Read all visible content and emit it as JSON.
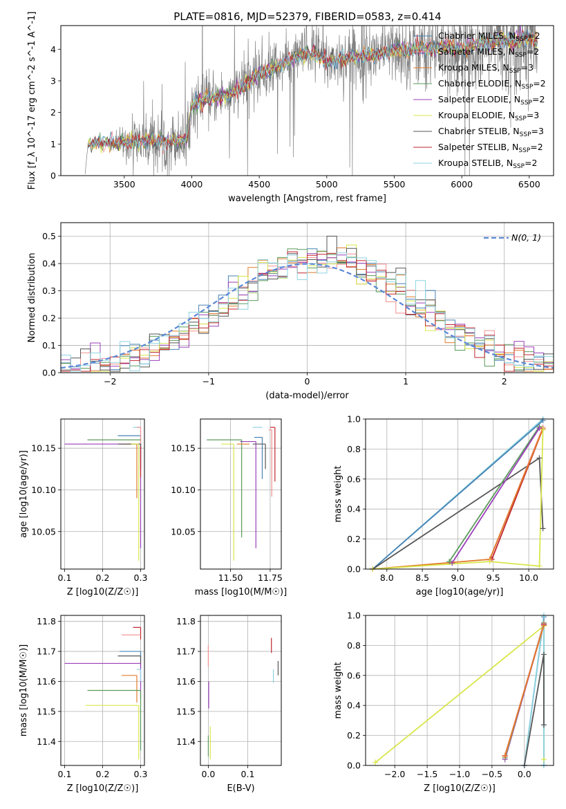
{
  "figure_title": "PLATE=0816, MJD=52379, FIBERID=0583, z=0.414",
  "model_colors": {
    "Chabrier MILES": "#4682b4",
    "Salpeter MILES": "#f28e8e",
    "Kroupa MILES": "#e07b2a",
    "Chabrier ELODIE": "#5a9a5a",
    "Salpeter ELODIE": "#9a3fb8",
    "Kroupa ELODIE": "#d8e64a",
    "Chabrier STELIB": "#555555",
    "Salpeter STELIB": "#c0262d",
    "Kroupa STELIB": "#8dd3e0"
  },
  "chart_data": [
    {
      "type": "line",
      "id": "spectrum",
      "xlabel": "wavelength [Angstrom, rest frame]",
      "ylabel": "Flux [f_λ 10^-17 erg cm^-2 s^-1 A^-1]",
      "xlim": [
        3030,
        6680
      ],
      "ylim": [
        0,
        4.75
      ],
      "xticks": [
        3500,
        4000,
        4500,
        5000,
        5500,
        6000,
        6500
      ],
      "yticks": [
        0,
        1,
        2,
        3,
        4
      ],
      "grid": false,
      "legend_position": "top-right",
      "legend": [
        {
          "name": "Chabrier MILES",
          "nssp": "2"
        },
        {
          "name": "Salpeter MILES",
          "nssp": "2"
        },
        {
          "name": "Kroupa MILES",
          "nssp": "3"
        },
        {
          "name": "Chabrier ELODIE",
          "nssp": "2"
        },
        {
          "name": "Salpeter ELODIE",
          "nssp": "2"
        },
        {
          "name": "Kroupa ELODIE",
          "nssp": "3"
        },
        {
          "name": "Chabrier STELIB",
          "nssp": "3"
        },
        {
          "name": "Salpeter STELIB",
          "nssp": "2"
        },
        {
          "name": "Kroupa STELIB",
          "nssp": "2"
        }
      ],
      "data_color": "#7f7f7f",
      "continuum": {
        "x": [
          3210,
          3230,
          3300,
          3400,
          3500,
          3600,
          3700,
          3800,
          3900,
          3960,
          4000,
          4100,
          4200,
          4300,
          4400,
          4500,
          4600,
          4700,
          4800,
          4900,
          5000,
          5100,
          5200,
          5300,
          5400,
          5500,
          5600,
          5700,
          5800,
          5900,
          6000,
          6100,
          6200,
          6300,
          6400,
          6500,
          6560
        ],
        "y": [
          0.05,
          0.95,
          1.05,
          1.0,
          1.05,
          1.1,
          1.15,
          1.05,
          1.15,
          1.1,
          2.2,
          2.4,
          2.5,
          2.6,
          2.9,
          3.25,
          3.4,
          3.6,
          3.8,
          3.9,
          3.6,
          3.7,
          3.75,
          3.8,
          3.85,
          4.0,
          3.95,
          4.05,
          4.0,
          4.1,
          3.95,
          4.2,
          4.15,
          4.3,
          4.25,
          4.4,
          4.2
        ]
      },
      "data_noise_sigma": [
        0,
        0.05,
        0.08,
        0.1,
        0.35,
        0.5,
        0.6,
        0.6,
        0.55,
        0.5,
        0.55,
        0.5,
        0.5,
        0.5,
        0.55,
        0.6,
        0.6,
        0.5,
        0.5,
        0.6,
        0.6,
        0.6,
        0.6,
        0.65,
        0.6,
        0.65,
        0.7,
        0.75,
        0.8,
        0.85,
        0.9,
        0.9,
        0.95,
        1.0,
        1.0,
        1.0,
        1.0
      ]
    },
    {
      "type": "step",
      "id": "residuals",
      "xlabel": "(data-model)/error",
      "ylabel": "Normed distribution",
      "xlim": [
        -2.5,
        2.5
      ],
      "ylim": [
        0,
        0.55
      ],
      "xticks": [
        -2,
        -1,
        0,
        1,
        2
      ],
      "yticks": [
        0.0,
        0.1,
        0.2,
        0.3,
        0.4,
        0.5
      ],
      "grid": true,
      "legend_position": "top-right",
      "legend": [
        {
          "name": "N(0, 1)"
        }
      ],
      "gauss": {
        "mean": 0,
        "sigma": 1,
        "color": "#5b87d6"
      },
      "bin_edges_start": -2.5,
      "bin_width": 0.1,
      "hist_shape": {
        "center": 0.15,
        "sigma": 0.95,
        "peak": 0.43
      }
    },
    {
      "type": "scatter",
      "id": "age-vs-Z",
      "xlabel": "Z [log10(Z/Z☉)]",
      "ylabel": "age [log10(age/yr)]",
      "xlim": [
        0.09,
        0.31
      ],
      "ylim": [
        10.005,
        10.185
      ],
      "xticks": [
        0.1,
        0.2,
        0.3
      ],
      "yticks": [
        10.05,
        10.1,
        10.15
      ],
      "grid": true,
      "points": [
        {
          "model": "Kroupa STELIB",
          "x": 0.3,
          "y": 10.175,
          "xerr": 0.02,
          "yerr": 0.0
        },
        {
          "model": "Chabrier MILES",
          "x": 0.3,
          "y": 10.165,
          "xerr": 0.06,
          "yerr": 0.03
        },
        {
          "model": "Salpeter MILES",
          "x": 0.3,
          "y": 10.175,
          "xerr": 0.01,
          "yerr": 0.05
        },
        {
          "model": "Chabrier ELODIE",
          "x": 0.3,
          "y": 10.16,
          "xerr": 0.14,
          "yerr": 0.0
        },
        {
          "model": "Salpeter ELODIE",
          "x": 0.3,
          "y": 10.155,
          "xerr": 0.2,
          "yerr": 0.125
        },
        {
          "model": "Kroupa MILES",
          "x": 0.29,
          "y": 10.155,
          "xerr": 0.04,
          "yerr": 0.065
        },
        {
          "model": "Chabrier STELIB",
          "x": 0.3,
          "y": 10.155,
          "xerr": 0.06,
          "yerr": 0.03
        },
        {
          "model": "Salpeter STELIB",
          "x": 0.3,
          "y": 10.152,
          "xerr": 0.0,
          "yerr": 0.037
        },
        {
          "model": "Kroupa ELODIE",
          "x": 0.295,
          "y": 10.155,
          "xerr": 0.02,
          "yerr": 0.14
        }
      ]
    },
    {
      "type": "scatter",
      "id": "age-vs-mass",
      "xlabel": "mass [log10(M/M☉)]",
      "ylabel": "",
      "xlim": [
        11.31,
        11.82
      ],
      "ylim": [
        10.005,
        10.185
      ],
      "xticks": [
        11.5,
        11.75
      ],
      "yticks": [
        10.05,
        10.1,
        10.15
      ],
      "grid": true,
      "points": [
        {
          "model": "Kroupa STELIB",
          "x": 11.7,
          "y": 10.175,
          "xerr": 0.06,
          "yerr": 0.0
        },
        {
          "model": "Salpeter MILES",
          "x": 11.76,
          "y": 10.172,
          "xerr": 0.02,
          "yerr": 0.08
        },
        {
          "model": "Chabrier MILES",
          "x": 11.7,
          "y": 10.163,
          "xerr": 0.05,
          "yerr": 0.05
        },
        {
          "model": "Salpeter STELIB",
          "x": 11.78,
          "y": 10.175,
          "xerr": 0.03,
          "yerr": 0.065
        },
        {
          "model": "Chabrier ELODIE",
          "x": 11.57,
          "y": 10.16,
          "xerr": 0.22,
          "yerr": 0.117
        },
        {
          "model": "Salpeter ELODIE",
          "x": 11.66,
          "y": 10.158,
          "xerr": 0.1,
          "yerr": 0.128
        },
        {
          "model": "Chabrier STELIB",
          "x": 11.72,
          "y": 10.155,
          "xerr": 0.08,
          "yerr": 0.03
        },
        {
          "model": "Kroupa MILES",
          "x": 11.62,
          "y": 10.155,
          "xerr": 0.08,
          "yerr": 0.0
        },
        {
          "model": "Kroupa ELODIE",
          "x": 11.52,
          "y": 10.155,
          "xerr": 0.08,
          "yerr": 0.14
        }
      ]
    },
    {
      "type": "line",
      "id": "massweight-vs-age",
      "xlabel": "age [log10(age/yr)]",
      "ylabel": "mass weight",
      "xlim": [
        7.7,
        10.35
      ],
      "ylim": [
        0,
        1.0
      ],
      "xticks": [
        8.0,
        8.5,
        9.0,
        9.5,
        10.0
      ],
      "yticks": [
        0.0,
        0.2,
        0.4,
        0.6,
        0.8,
        1.0
      ],
      "grid": true,
      "series": [
        {
          "model": "Kroupa STELIB",
          "x": [
            7.8,
            10.2
          ],
          "y": [
            0.0,
            1.0
          ]
        },
        {
          "model": "Chabrier MILES",
          "x": [
            7.8,
            10.2
          ],
          "y": [
            0.0,
            0.99
          ]
        },
        {
          "model": "Chabrier STELIB",
          "x": [
            7.8,
            10.15,
            10.2
          ],
          "y": [
            0.0,
            0.74,
            0.27
          ]
        },
        {
          "model": "Chabrier ELODIE",
          "x": [
            8.88,
            10.15
          ],
          "y": [
            0.05,
            0.95
          ]
        },
        {
          "model": "Salpeter ELODIE",
          "x": [
            8.92,
            10.15
          ],
          "y": [
            0.04,
            0.94
          ]
        },
        {
          "model": "Salpeter STELIB",
          "x": [
            9.48,
            10.2
          ],
          "y": [
            0.065,
            0.935
          ]
        },
        {
          "model": "Salpeter MILES",
          "x": [
            9.45,
            10.2
          ],
          "y": [
            0.06,
            0.945
          ]
        },
        {
          "model": "Kroupa MILES",
          "x": [
            7.8,
            9.45,
            10.2
          ],
          "y": [
            0.0,
            0.065,
            0.935
          ]
        },
        {
          "model": "Kroupa ELODIE",
          "x": [
            7.8,
            9.45,
            10.15,
            10.2
          ],
          "y": [
            0.0,
            0.05,
            0.02,
            0.93
          ]
        }
      ]
    },
    {
      "type": "scatter",
      "id": "mass-vs-Z",
      "xlabel": "Z [log10(Z/Z☉)]",
      "ylabel": "mass [log10(M/M☉)]",
      "xlim": [
        0.09,
        0.31
      ],
      "ylim": [
        11.32,
        11.82
      ],
      "xticks": [
        0.1,
        0.2,
        0.3
      ],
      "yticks": [
        11.4,
        11.5,
        11.6,
        11.7,
        11.8
      ],
      "grid": true,
      "points": [
        {
          "model": "Salpeter STELIB",
          "x": 0.3,
          "y": 11.78,
          "xerr": 0.02,
          "yerr": 0.04
        },
        {
          "model": "Salpeter MILES",
          "x": 0.3,
          "y": 11.755,
          "xerr": 0.05,
          "yerr": 0.0
        },
        {
          "model": "Chabrier MILES",
          "x": 0.3,
          "y": 11.7,
          "xerr": 0.055,
          "yerr": 0.04
        },
        {
          "model": "Chabrier STELIB",
          "x": 0.3,
          "y": 11.685,
          "xerr": 0.06,
          "yerr": 0.04
        },
        {
          "model": "Salpeter ELODIE",
          "x": 0.3,
          "y": 11.66,
          "xerr": 0.2,
          "yerr": 0.12
        },
        {
          "model": "Kroupa MILES",
          "x": 0.29,
          "y": 11.62,
          "xerr": 0.04,
          "yerr": 0.09
        },
        {
          "model": "Kroupa STELIB",
          "x": 0.3,
          "y": 11.64,
          "xerr": 0.01,
          "yerr": 0.04
        },
        {
          "model": "Chabrier ELODIE",
          "x": 0.3,
          "y": 11.57,
          "xerr": 0.14,
          "yerr": 0.2
        },
        {
          "model": "Kroupa ELODIE",
          "x": 0.295,
          "y": 11.52,
          "xerr": 0.14,
          "yerr": 0.18
        }
      ]
    },
    {
      "type": "scatter",
      "id": "mass-vs-ebv",
      "xlabel": "E(B-V)",
      "ylabel": "",
      "xlim": [
        -0.02,
        0.185
      ],
      "ylim": [
        11.32,
        11.82
      ],
      "xticks": [
        0.0,
        0.1
      ],
      "yticks": [
        11.4,
        11.5,
        11.6,
        11.7,
        11.8
      ],
      "grid": true,
      "points": [
        {
          "model": "Salpeter MILES",
          "x": 0.0,
          "y": 11.72,
          "xerr": 0.0,
          "yerr": 0.07
        },
        {
          "model": "Salpeter ELODIE",
          "x": 0.001,
          "y": 11.6,
          "xerr": 0.0,
          "yerr": 0.09
        },
        {
          "model": "Chabrier ELODIE",
          "x": 0.0,
          "y": 11.42,
          "xerr": 0.0,
          "yerr": 0.07
        },
        {
          "model": "Kroupa ELODIE",
          "x": 0.005,
          "y": 11.45,
          "xerr": 0.0,
          "yerr": 0.11
        },
        {
          "model": "Salpeter STELIB",
          "x": 0.16,
          "y": 11.745,
          "xerr": 0.0,
          "yerr": 0.05
        },
        {
          "model": "Chabrier STELIB",
          "x": 0.177,
          "y": 11.668,
          "xerr": 0.0,
          "yerr": 0.048
        },
        {
          "model": "Kroupa STELIB",
          "x": 0.165,
          "y": 11.64,
          "xerr": 0.0,
          "yerr": 0.045
        }
      ]
    },
    {
      "type": "line",
      "id": "massweight-vs-Z",
      "xlabel": "Z [log10(Z/Z☉)]",
      "ylabel": "mass weight",
      "xlim": [
        -2.45,
        0.45
      ],
      "ylim": [
        0,
        1.0
      ],
      "xticks": [
        -2.0,
        -1.5,
        -1.0,
        -0.5,
        0.0
      ],
      "yticks": [
        0.0,
        0.2,
        0.4,
        0.6,
        0.8,
        1.0
      ],
      "grid": true,
      "series": [
        {
          "model": "Kroupa ELODIE",
          "x": [
            -2.3,
            0.3,
            0.3
          ],
          "y": [
            0.02,
            0.93,
            0.04
          ]
        },
        {
          "model": "Chabrier MILES",
          "x": [
            0.0,
            0.3,
            0.3
          ],
          "y": [
            0.0,
            0.99,
            0.0
          ]
        },
        {
          "model": "Kroupa STELIB",
          "x": [
            0.0,
            0.3,
            0.3
          ],
          "y": [
            0.0,
            1.0,
            0.0
          ]
        },
        {
          "model": "Chabrier STELIB",
          "x": [
            0.0,
            0.3,
            0.3
          ],
          "y": [
            0.0,
            0.74,
            0.27
          ]
        },
        {
          "model": "Salpeter ELODIE",
          "x": [
            -0.3,
            0.3
          ],
          "y": [
            0.04,
            0.94
          ]
        },
        {
          "model": "Chabrier ELODIE",
          "x": [
            -0.3,
            0.3
          ],
          "y": [
            0.05,
            0.95
          ]
        },
        {
          "model": "Salpeter STELIB",
          "x": [
            -0.3,
            0.3
          ],
          "y": [
            0.065,
            0.935
          ]
        },
        {
          "model": "Salpeter MILES",
          "x": [
            -0.3,
            0.3
          ],
          "y": [
            0.06,
            0.945
          ]
        },
        {
          "model": "Kroupa MILES",
          "x": [
            -0.3,
            0.3
          ],
          "y": [
            0.065,
            0.935
          ]
        }
      ]
    }
  ]
}
